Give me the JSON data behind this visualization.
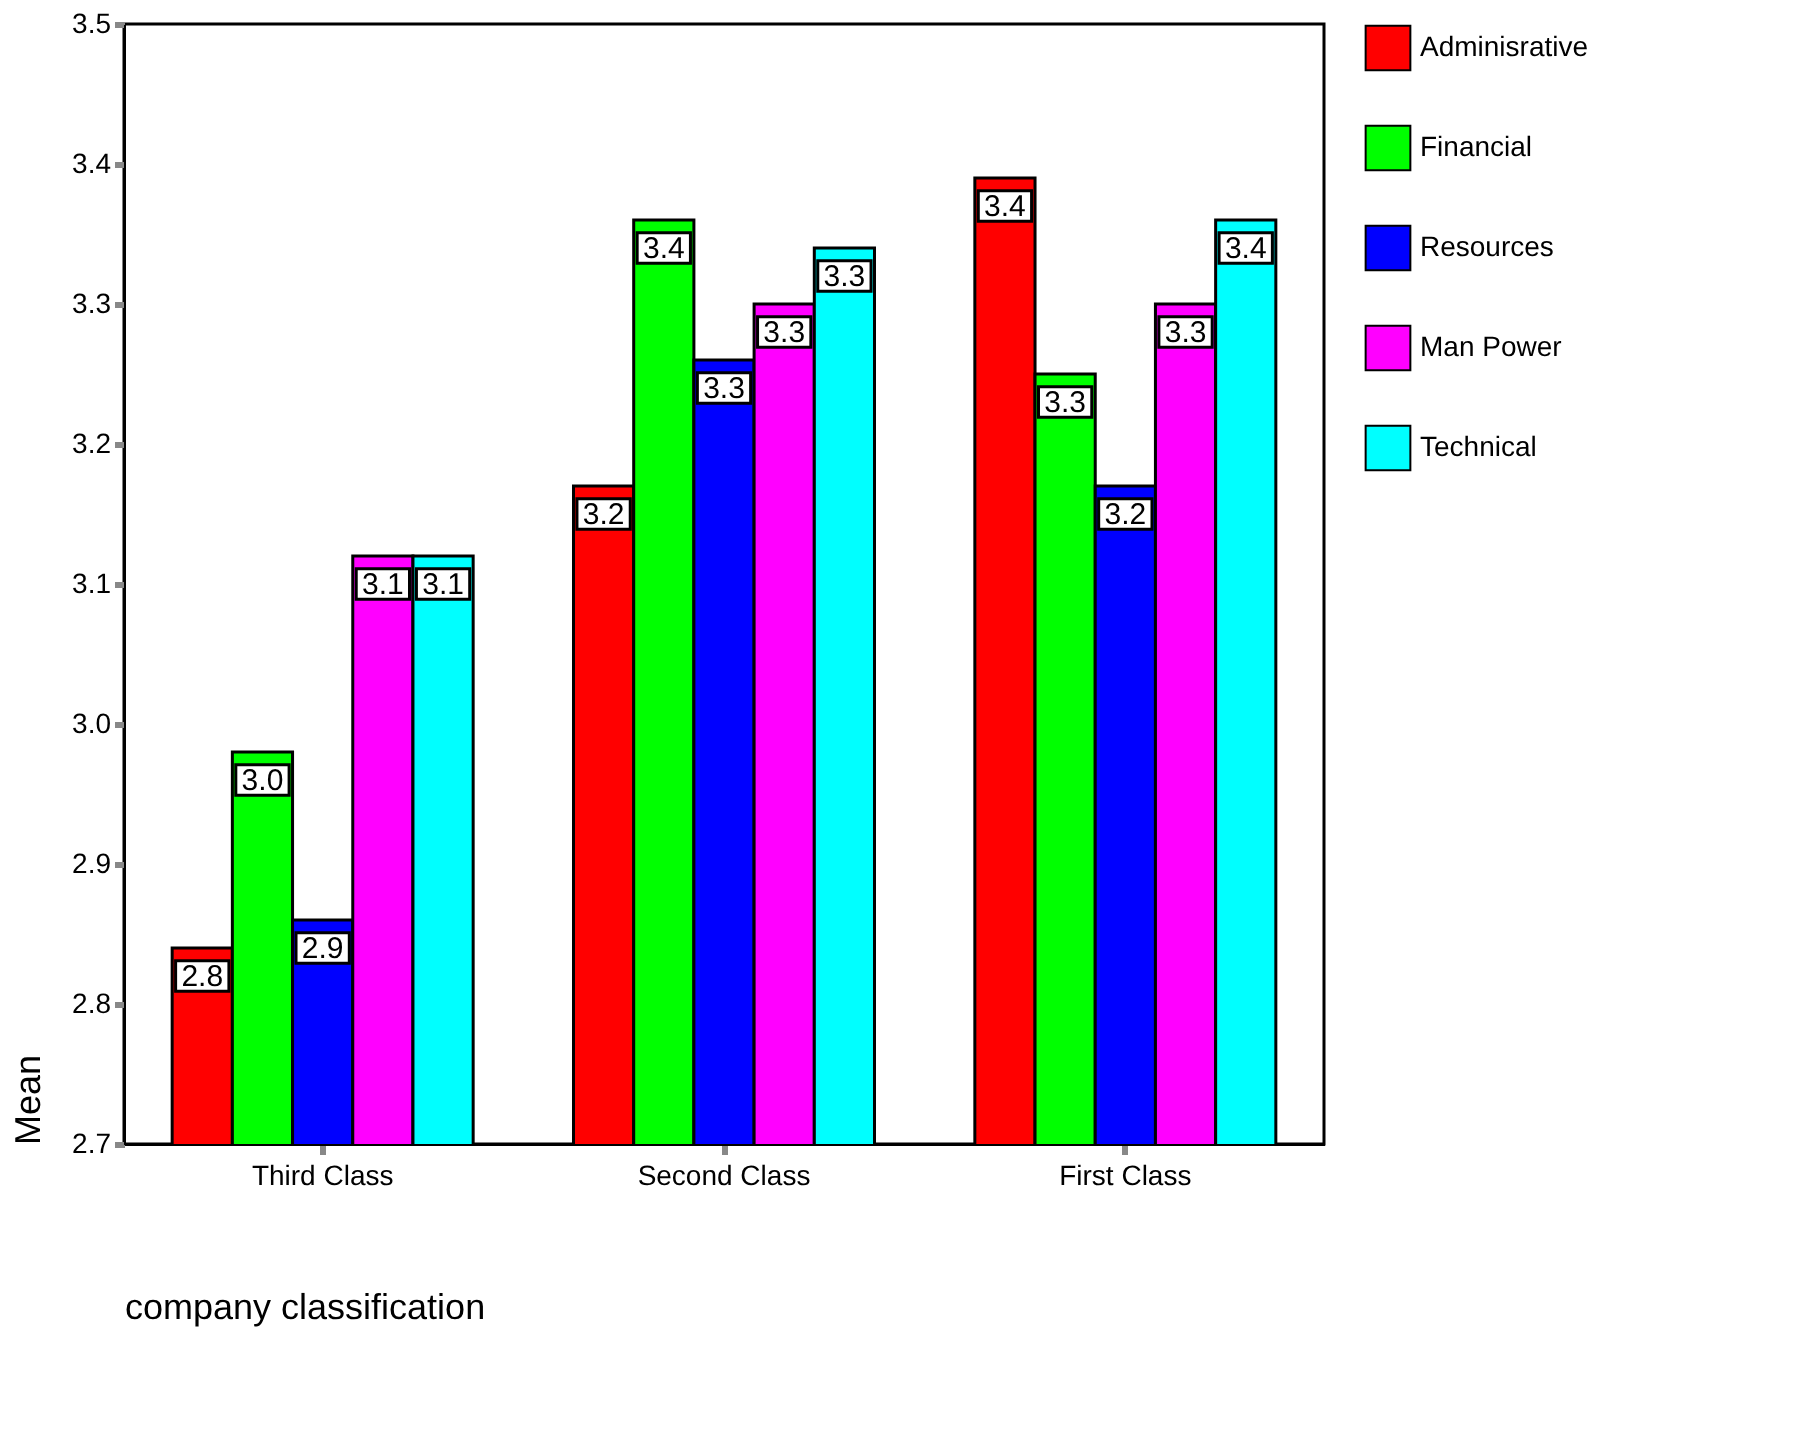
{
  "chart_data": {
    "type": "bar",
    "xlabel": "company classification",
    "ylabel": "Mean",
    "categories": [
      "Third Class",
      "Second Class",
      "First Class"
    ],
    "series": [
      {
        "name": "Adminisrative",
        "color": "#ff0000",
        "values": [
          2.84,
          3.17,
          3.39
        ],
        "value_labels": [
          "2.8",
          "3.2",
          "3.4"
        ]
      },
      {
        "name": "Financial",
        "color": "#00ff00",
        "values": [
          2.98,
          3.36,
          3.25
        ],
        "value_labels": [
          "3.0",
          "3.4",
          "3.3"
        ]
      },
      {
        "name": "Resources",
        "color": "#0000ff",
        "values": [
          2.86,
          3.26,
          3.17
        ],
        "value_labels": [
          "2.9",
          "3.3",
          "3.2"
        ]
      },
      {
        "name": "Man Power",
        "color": "#ff00ff",
        "values": [
          3.12,
          3.3,
          3.3
        ],
        "value_labels": [
          "3.1",
          "3.3",
          "3.3"
        ]
      },
      {
        "name": "Technical",
        "color": "#00ffff",
        "values": [
          3.12,
          3.34,
          3.36
        ],
        "value_labels": [
          "3.1",
          "3.3",
          "3.4"
        ]
      }
    ],
    "ylim": [
      2.7,
      3.5
    ],
    "yticks": [
      2.7,
      2.8,
      2.9,
      {
        "value": 3.0,
        "label": "3.0"
      },
      3.1,
      3.2,
      3.3,
      3.4,
      3.5
    ],
    "grid": false,
    "legend": "right"
  }
}
